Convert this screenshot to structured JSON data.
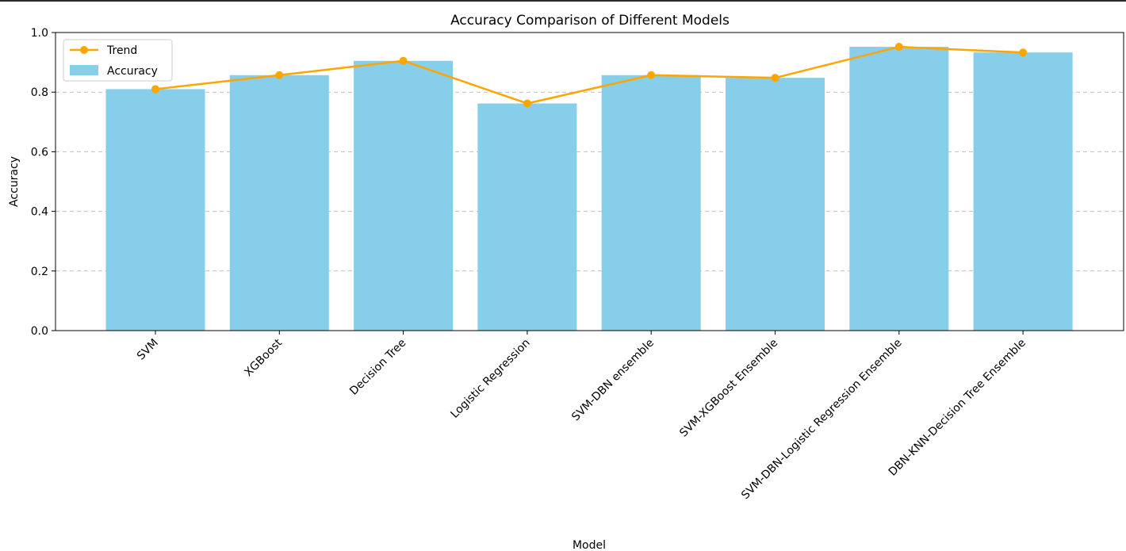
{
  "chart_data": {
    "type": "bar",
    "title": "Accuracy Comparison of Different Models",
    "xlabel": "Model",
    "ylabel": "Accuracy",
    "ylim": [
      0,
      1.0
    ],
    "yticks": [
      "0.0",
      "0.2",
      "0.4",
      "0.6",
      "0.8",
      "1.0"
    ],
    "ytick_values": [
      0,
      0.2,
      0.4,
      0.6,
      0.8,
      1.0
    ],
    "grid": "y-dashed",
    "legend_position": "top-left",
    "categories": [
      "SVM",
      "XGBoost",
      "Decision Tree",
      "Logistic Regression",
      "SVM-DBN ensemble",
      "SVM-XGBoost Ensemble",
      "SVM-DBN-Logistic Regression Ensemble",
      "DBN-KNN-Decision Tree Ensemble"
    ],
    "series": [
      {
        "name": "Accuracy",
        "kind": "bar",
        "color": "#87ceeb",
        "values": [
          0.81,
          0.857,
          0.905,
          0.762,
          0.857,
          0.848,
          0.952,
          0.933
        ]
      },
      {
        "name": "Trend",
        "kind": "line",
        "color": "#ffa500",
        "values": [
          0.81,
          0.857,
          0.905,
          0.762,
          0.857,
          0.848,
          0.952,
          0.933
        ]
      }
    ]
  }
}
